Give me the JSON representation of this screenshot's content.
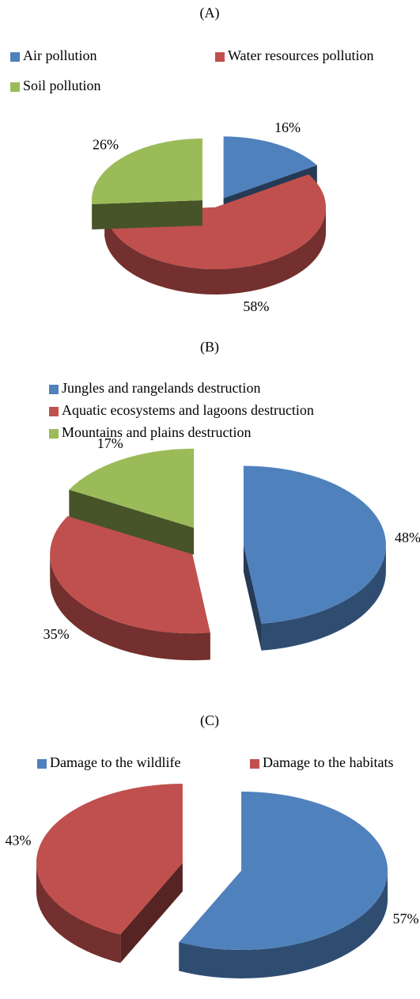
{
  "chart_data": [
    {
      "type": "pie",
      "title": "(A)",
      "categories": [
        "Air pollution",
        "Water resources pollution",
        "Soil pollution"
      ],
      "values": [
        16,
        58,
        26
      ],
      "value_labels": [
        "16%",
        "58%",
        "26%"
      ],
      "colors": [
        "#4f81bd",
        "#c0504d",
        "#9bbb59"
      ]
    },
    {
      "type": "pie",
      "title": "(B)",
      "categories": [
        "Jungles and rangelands destruction",
        "Aquatic ecosystems and lagoons destruction",
        "Mountains and plains destruction"
      ],
      "values": [
        48,
        35,
        17
      ],
      "value_labels": [
        "48%",
        "35%",
        "17%"
      ],
      "colors": [
        "#4f81bd",
        "#c0504d",
        "#9bbb59"
      ]
    },
    {
      "type": "pie",
      "title": "(C)",
      "categories": [
        "Damage to the wildlife",
        "Damage to the habitats"
      ],
      "values": [
        57,
        43
      ],
      "value_labels": [
        "57%",
        "43%"
      ],
      "colors": [
        "#4f81bd",
        "#c0504d"
      ]
    }
  ]
}
